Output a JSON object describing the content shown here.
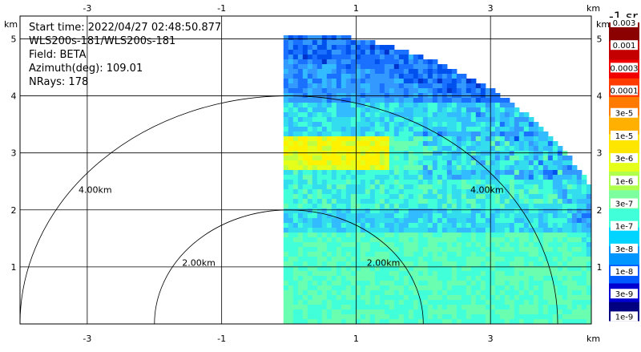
{
  "info": {
    "start_time": "Start time: 2022/04/27 02:48:50.877",
    "instrument": "WLS200s-181/WLS200s-181",
    "field": "Field: BETA",
    "azimuth": "Azimuth(deg): 109.01",
    "nrays": "NRays: 178"
  },
  "colorbar": {
    "title": "-1 sr",
    "labels": [
      "0.003",
      "0.001",
      "0.0003",
      "0.0001",
      "3e-5",
      "1e-5",
      "3e-6",
      "1e-6",
      "3e-7",
      "1e-7",
      "3e-8",
      "1e-8",
      "3e-9",
      "1e-9"
    ],
    "colors": [
      "#8b0000",
      "#c40000",
      "#f20000",
      "#ff3b00",
      "#ff7a00",
      "#ffb000",
      "#ffe600",
      "#e6ff1a",
      "#b0ff4d",
      "#7dffa0",
      "#40ffd9",
      "#00d4ff",
      "#0096ff",
      "#005aff",
      "#0000d0",
      "#000080"
    ]
  },
  "chart_data": {
    "type": "heatmap",
    "description_units": "km",
    "xlim": [
      -4.0,
      4.5
    ],
    "ylim": [
      0,
      5.4
    ],
    "x_ticks": [
      "-3",
      "-1",
      "1",
      "3"
    ],
    "x_tick_values": [
      -3,
      -1,
      1,
      3
    ],
    "y_ticks": [
      "1",
      "2",
      "3",
      "4",
      "5"
    ],
    "y_tick_values": [
      1,
      2,
      3,
      4,
      5
    ],
    "axis_unit": "km",
    "range_rings": [
      {
        "radius": 2.0,
        "label": "2.00km"
      },
      {
        "radius": 4.0,
        "label": "4.00km"
      }
    ],
    "ring_center_x": 0.0,
    "scan_sector_x_start": -0.08,
    "scan_max_range": 5.1,
    "grid": true
  }
}
